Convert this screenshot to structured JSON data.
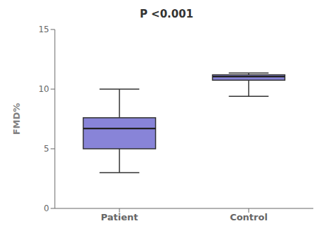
{
  "chart_data": {
    "type": "box",
    "title": "P <0.001",
    "ylabel": "FMD%",
    "categories": [
      "Patient",
      "Control"
    ],
    "boxes": [
      {
        "q1": 5.0,
        "median": 6.7,
        "q3": 7.6,
        "whisker_low": 3.0,
        "whisker_high": 10.0
      },
      {
        "q1": 10.75,
        "median": 11.05,
        "q3": 11.2,
        "whisker_low": 9.4,
        "whisker_high": 11.35
      }
    ],
    "ylim": [
      0,
      15
    ],
    "yticks": [
      0,
      5,
      10,
      15
    ],
    "grid": false
  }
}
